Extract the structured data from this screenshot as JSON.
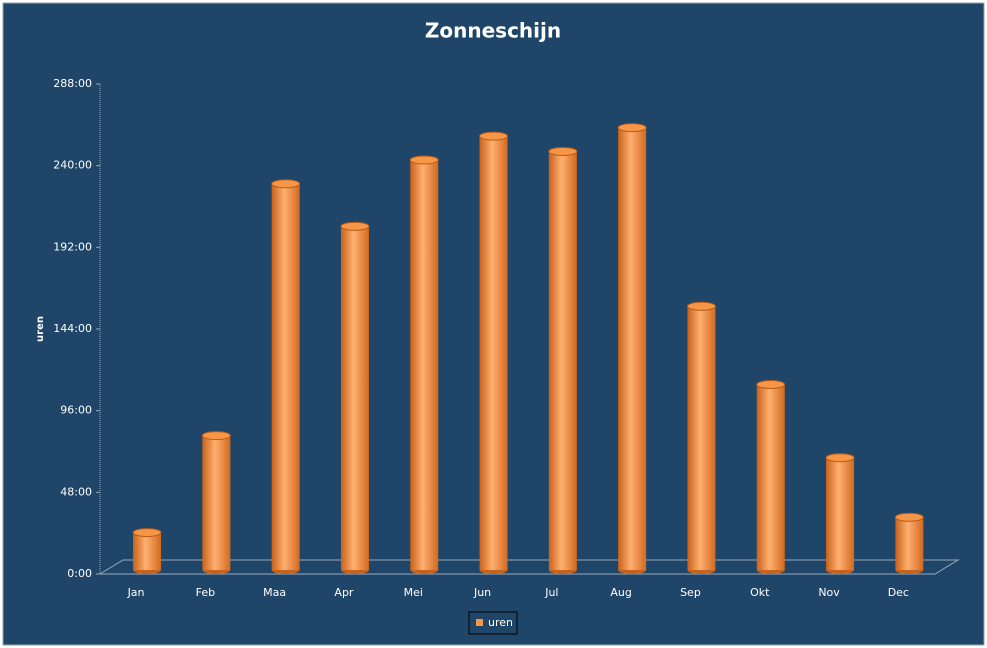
{
  "chart_data": {
    "type": "bar",
    "title": "Zonneschijn",
    "y_label": "uren",
    "categories": [
      "Jan",
      "Feb",
      "Maa",
      "Apr",
      "Mei",
      "Jun",
      "Jul",
      "Aug",
      "Sep",
      "Okt",
      "Nov",
      "Dec"
    ],
    "series": [
      {
        "name": "uren",
        "color": "#f79646",
        "values": [
          22,
          79,
          227,
          202,
          241,
          255,
          246,
          260,
          155,
          109,
          66,
          31
        ]
      }
    ],
    "ylim": [
      0,
      288
    ],
    "yticks": [
      {
        "value": 0,
        "label": "0:00"
      },
      {
        "value": 48,
        "label": "48:00"
      },
      {
        "value": 96,
        "label": "96:00"
      },
      {
        "value": 144,
        "label": "144:00"
      },
      {
        "value": 192,
        "label": "192:00"
      },
      {
        "value": 240,
        "label": "240:00"
      },
      {
        "value": 288,
        "label": "288:00"
      }
    ],
    "grid": false,
    "legend": "bottom"
  }
}
